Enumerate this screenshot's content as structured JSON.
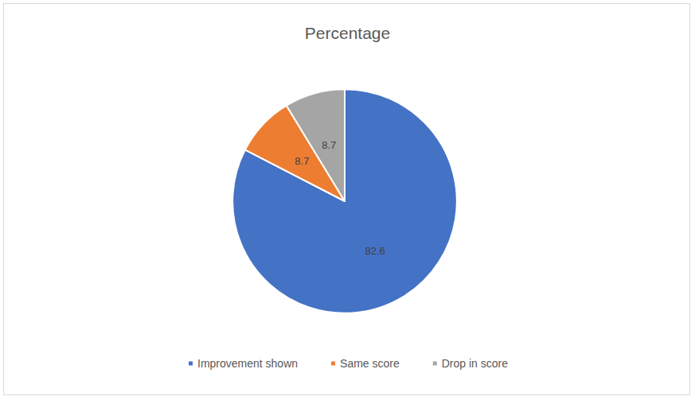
{
  "chart_data": {
    "type": "pie",
    "title": "Percentage",
    "categories": [
      "Improvement shown",
      "Same score",
      "Drop in score"
    ],
    "values": [
      82.6,
      8.7,
      8.7
    ],
    "colors": [
      "#4472c4",
      "#ed7d31",
      "#a5a5a5"
    ],
    "data_labels": true,
    "legend": "bottom"
  }
}
